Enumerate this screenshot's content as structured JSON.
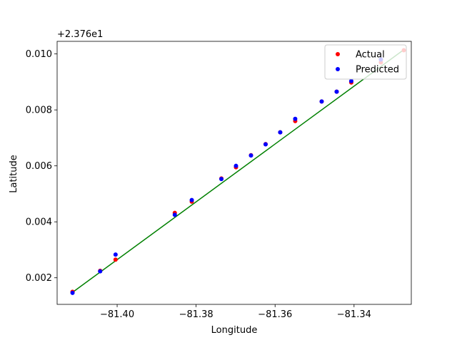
{
  "chart_data": {
    "type": "scatter",
    "xlabel": "Longitude",
    "ylabel": "Latitude",
    "y_offset_label": "+2.376e1",
    "xlim": [
      -81.4152,
      -81.3255
    ],
    "ylim": [
      0.00105,
      0.01045
    ],
    "x_ticks": [
      -81.4,
      -81.38,
      -81.36,
      -81.34
    ],
    "x_tick_labels": [
      "−81.40",
      "−81.38",
      "−81.36",
      "−81.34"
    ],
    "y_ticks": [
      0.002,
      0.004,
      0.006,
      0.008,
      0.01
    ],
    "y_tick_labels": [
      "0.002",
      "0.004",
      "0.006",
      "0.008",
      "0.010"
    ],
    "grid": false,
    "legend_position": "top-right",
    "line": {
      "color": "#008000",
      "points": [
        [
          -81.4113,
          0.00148
        ],
        [
          -81.3274,
          0.01015
        ]
      ]
    },
    "series": [
      {
        "name": "Actual",
        "color": "#ff0000",
        "points": [
          [
            -81.4113,
            0.0015
          ],
          [
            -81.4043,
            0.00225
          ],
          [
            -81.4004,
            0.00265
          ],
          [
            -81.3854,
            0.00432
          ],
          [
            -81.3811,
            0.00472
          ],
          [
            -81.3736,
            0.00555
          ],
          [
            -81.3699,
            0.00595
          ],
          [
            -81.3661,
            0.00638
          ],
          [
            -81.3624,
            0.00678
          ],
          [
            -81.3587,
            0.0072
          ],
          [
            -81.3549,
            0.0076
          ],
          [
            -81.3482,
            0.0083
          ],
          [
            -81.3444,
            0.00865
          ],
          [
            -81.3407,
            0.00898
          ],
          [
            -81.3332,
            0.0097
          ],
          [
            -81.3274,
            0.01013
          ]
        ]
      },
      {
        "name": "Predicted",
        "color": "#0000ff",
        "points": [
          [
            -81.4113,
            0.00146
          ],
          [
            -81.4043,
            0.00223
          ],
          [
            -81.4004,
            0.00283
          ],
          [
            -81.3854,
            0.00425
          ],
          [
            -81.3811,
            0.00478
          ],
          [
            -81.3736,
            0.00553
          ],
          [
            -81.3699,
            0.006
          ],
          [
            -81.3661,
            0.00637
          ],
          [
            -81.3624,
            0.00677
          ],
          [
            -81.3587,
            0.0072
          ],
          [
            -81.3549,
            0.00768
          ],
          [
            -81.3482,
            0.0083
          ],
          [
            -81.3444,
            0.00865
          ],
          [
            -81.3407,
            0.00903
          ],
          [
            -81.3332,
            0.0098
          ]
        ]
      }
    ]
  }
}
